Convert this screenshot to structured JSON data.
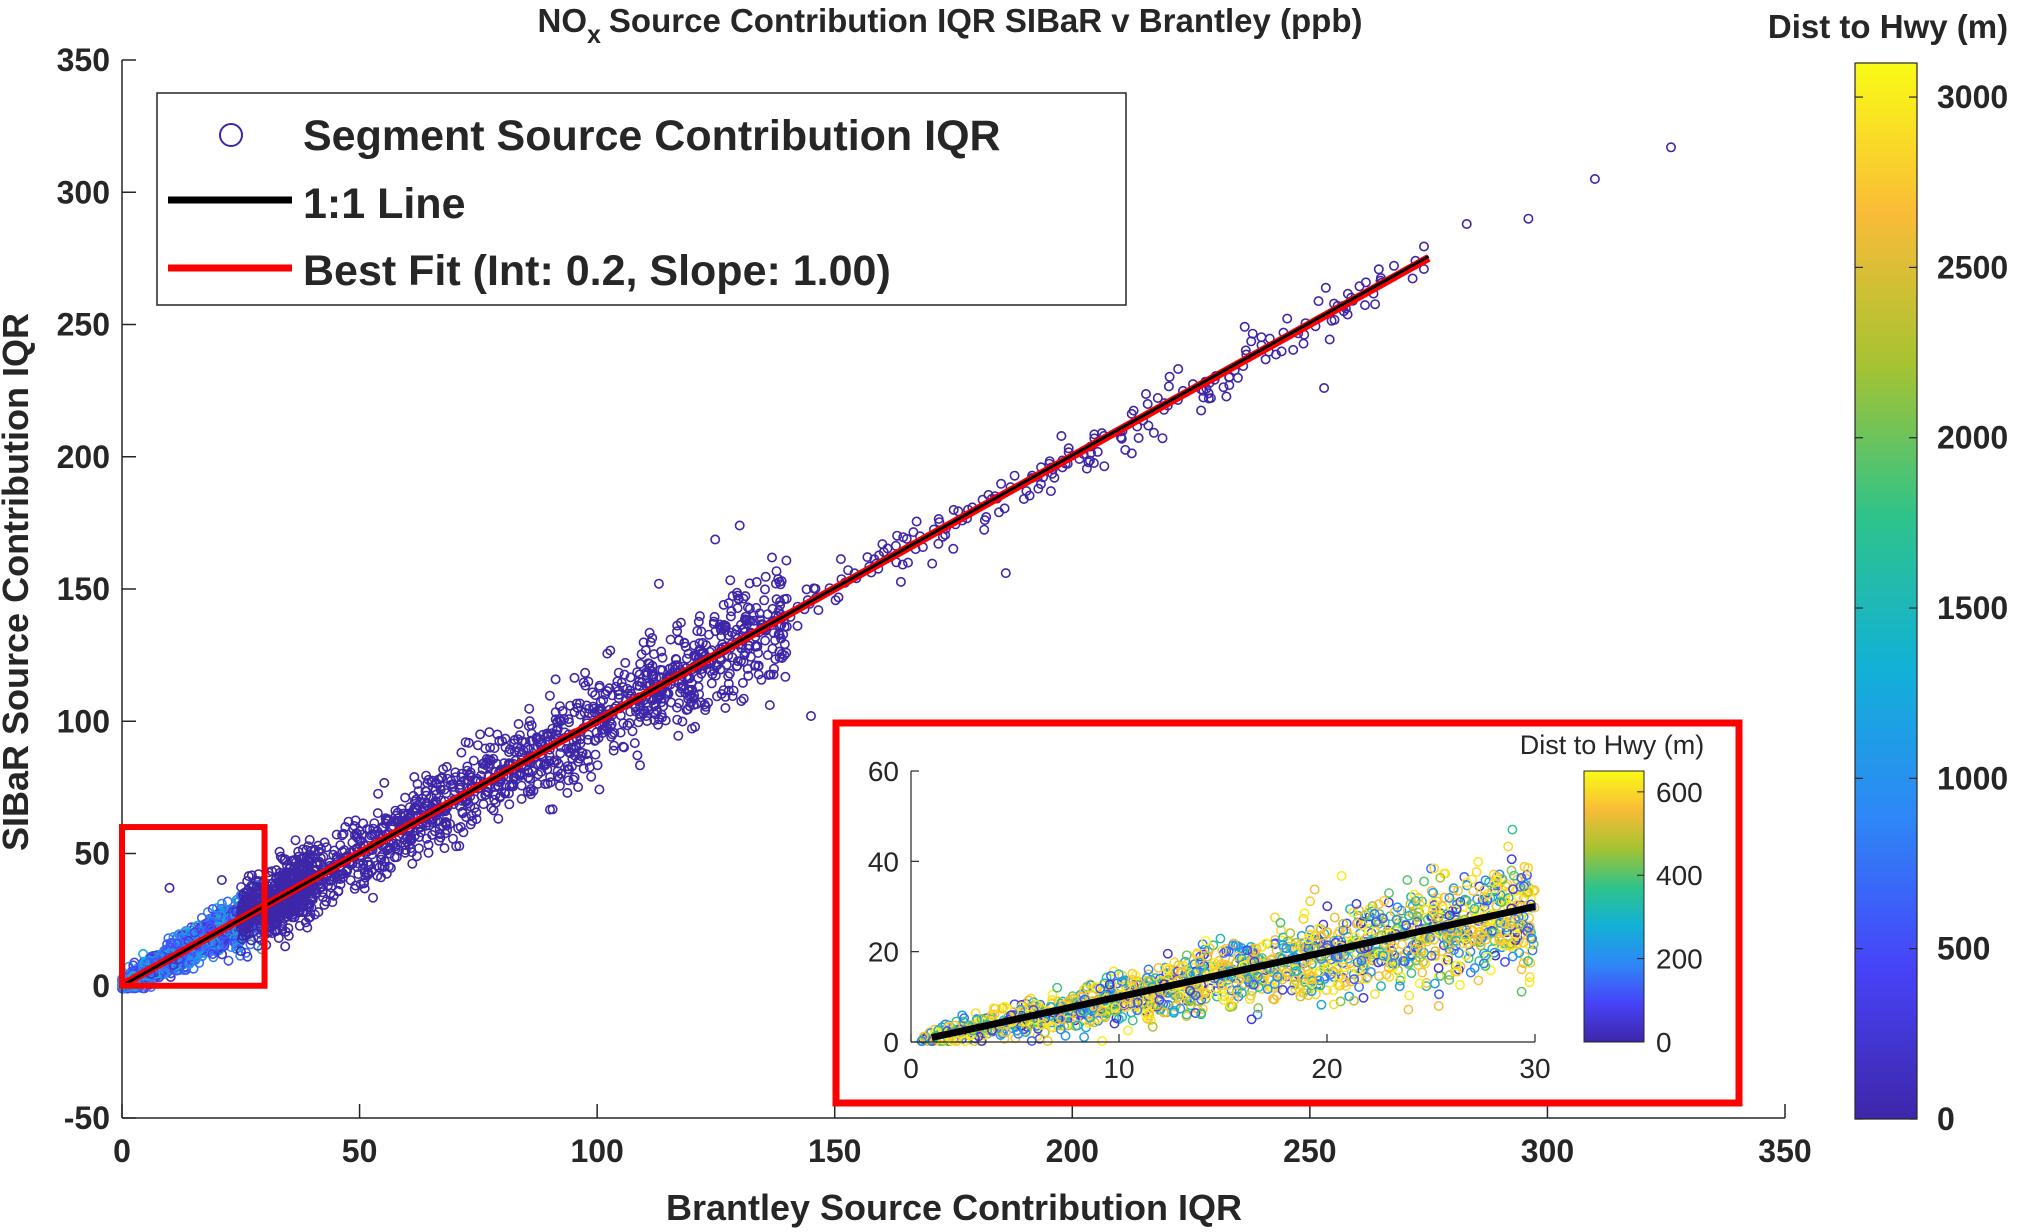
{
  "chart_data": {
    "type": "scatter",
    "title": "Source Contribution IQR SIBaR v Brantley (ppb)",
    "title_prefix": "NO",
    "title_subscript": "x",
    "xlabel": "Brantley Source Contribution IQR",
    "ylabel": "SIBaR Source Contribution IQR",
    "xlim": [
      0,
      350
    ],
    "ylim": [
      -50,
      350
    ],
    "xticks": [
      "0",
      "50",
      "100",
      "150",
      "200",
      "250",
      "300",
      "350"
    ],
    "yticks": [
      "-50",
      "0",
      "50",
      "100",
      "150",
      "200",
      "250",
      "300",
      "350"
    ],
    "grid": false,
    "legend_position": "top-left",
    "legend": [
      {
        "label": "Segment Source Contribution IQR",
        "kind": "marker"
      },
      {
        "label": "1:1 Line",
        "kind": "line",
        "color": "#000000"
      },
      {
        "label": "Best Fit (Int: 0.2, Slope: 1.00)",
        "kind": "line",
        "color": "#ff0000"
      }
    ],
    "one_to_one": {
      "x": [
        0,
        275
      ],
      "y": [
        0,
        275
      ]
    },
    "best_fit": {
      "intercept": 0.2,
      "slope": 1.0,
      "x": [
        0,
        275
      ]
    },
    "scatter_trend": {
      "x_max": 275,
      "low_density_start": 100,
      "noise_sd_ppb": 4
    },
    "outliers": [
      {
        "x": 326,
        "y": 317
      },
      {
        "x": 310,
        "y": 305
      },
      {
        "x": 296,
        "y": 290
      },
      {
        "x": 283,
        "y": 288
      },
      {
        "x": 274,
        "y": 271
      },
      {
        "x": 130,
        "y": 174
      },
      {
        "x": 113,
        "y": 152
      },
      {
        "x": 145,
        "y": 102
      },
      {
        "x": 127,
        "y": 105
      },
      {
        "x": 186,
        "y": 156
      },
      {
        "x": 10,
        "y": 37
      },
      {
        "x": 21,
        "y": 40
      },
      {
        "x": 39,
        "y": 22
      },
      {
        "x": 47,
        "y": 60
      },
      {
        "x": 253,
        "y": 226
      },
      {
        "x": 257,
        "y": 257
      }
    ],
    "colorbar": {
      "label": "Dist to Hwy (m)",
      "range": [
        0,
        3100
      ],
      "ticks": [
        "0",
        "500",
        "1000",
        "1500",
        "2000",
        "2500",
        "3000"
      ],
      "colormap": [
        "#3e26a8",
        "#4743f8",
        "#2e87f7",
        "#12b1d6",
        "#2fc38a",
        "#a6c331",
        "#f9bc38",
        "#f9fb15"
      ]
    },
    "zoom_box": {
      "x": [
        0,
        30
      ],
      "y": [
        0,
        60
      ]
    },
    "inset": {
      "xlim": [
        0,
        30
      ],
      "ylim": [
        0,
        60
      ],
      "xticks": [
        "0",
        "10",
        "20",
        "30"
      ],
      "yticks": [
        "0",
        "20",
        "40",
        "60"
      ],
      "line": {
        "x": [
          1,
          30
        ],
        "y": [
          1,
          30
        ],
        "color": "#000000"
      },
      "colorbar": {
        "label": "Dist to Hwy (m)",
        "range": [
          0,
          650
        ],
        "ticks": [
          "0",
          "200",
          "400",
          "600"
        ]
      }
    },
    "highlight_color": "#ff0000",
    "marker_edge_color": "#3e26a8"
  }
}
